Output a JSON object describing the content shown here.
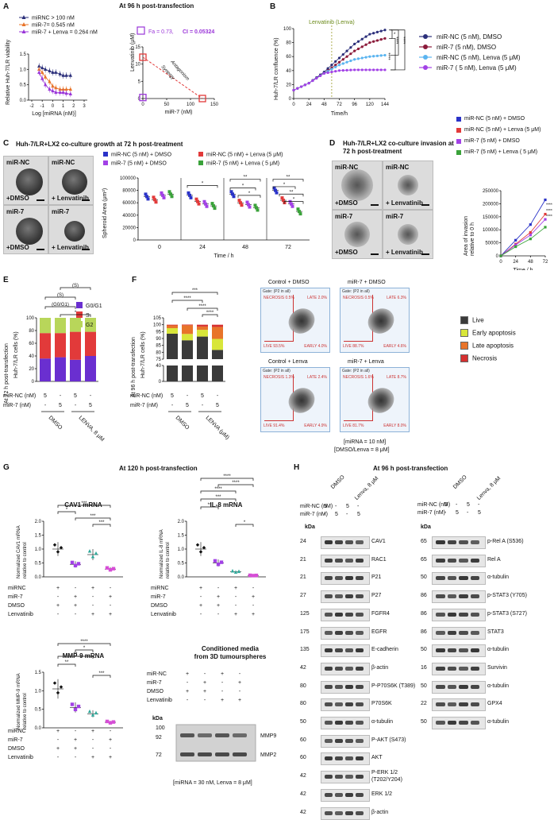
{
  "panelA": {
    "letter": "A",
    "title": "At 96 h post-transfection",
    "legend": [
      "miRNC > 100 nM",
      "miR-7= 0.545 nM",
      "miR-7 + Lenva = 0.264 nM"
    ],
    "ylabel": "Relative Huh-7/LR viability",
    "xlabel": "Log [miRNA (nM)]",
    "xticks": [
      "-2",
      "-1",
      "0",
      "1",
      "2",
      "3"
    ],
    "yticks": [
      "0.0",
      "0.5",
      "1.0",
      "1.5"
    ],
    "fa_label": "Fa = 0.73,",
    "ci_label": "CI = 0.05324",
    "iso_ylabel": "Lenvatinib (μM)",
    "iso_xlabel": "miR-7 (nM)",
    "iso_xticks": [
      "0",
      "50",
      "100",
      "150"
    ],
    "iso_yticks": [
      "0",
      "5",
      "10",
      "15"
    ],
    "antagonism": "Antagonism",
    "synergy": "Synergy"
  },
  "panelB": {
    "letter": "B",
    "annotation": "Lenvatinib (Lenva)",
    "ylabel": "Huh-7/LR confluence (%)",
    "xlabel": "Time/h",
    "xticks": [
      "0",
      "24",
      "48",
      "72",
      "96",
      "120",
      "144"
    ],
    "yticks": [
      "0",
      "20",
      "40",
      "60",
      "80",
      "100"
    ],
    "legend": [
      "miR-NC (5 nM), DMSO",
      "miR-7 (5 nM), DMSO",
      "miR-NC (5 nM), Lenva (5 μM)",
      "miR-7 ( 5 nM), Lenva (5 μM)"
    ],
    "stars": [
      "*",
      "****",
      "****",
      "****"
    ]
  },
  "panelC": {
    "letter": "C",
    "title": "Huh-7/LR+LX2 co-culture growth at 72 h post-treatment",
    "images": [
      {
        "top": "miR-NC",
        "bottom": "+DMSO"
      },
      {
        "top": "miR-NC",
        "bottom": "+ Lenvatinib"
      },
      {
        "top": "miR-7",
        "bottom": "+DMSO"
      },
      {
        "top": "miR-7",
        "bottom": "+ Lenvatinib"
      }
    ],
    "legend": [
      "miR-NC (5 nM) + DMSO",
      "miR-NC (5 nM) + Lenva (5 μM)",
      "miR-7 (5 nM) + DMSO",
      "miR-7 (5 nM) + Lenva ( 5 μM)"
    ],
    "ylabel": "Spheroid Area (μm²)",
    "xlabel": "Time / h",
    "yticks": [
      "0",
      "20000",
      "40000",
      "60000",
      "80000",
      "100000"
    ],
    "xticks": [
      "0",
      "24",
      "48",
      "72"
    ],
    "stars": [
      "*",
      "**",
      "*",
      "*",
      "**",
      "*",
      "**",
      "*"
    ]
  },
  "panelD": {
    "letter": "D",
    "title": "Huh-7/LR+LX2 co-culture invasion at 72 h post-treatment",
    "images": [
      {
        "top": "miR-NC",
        "bottom": "+DMSO"
      },
      {
        "top": "miR-NC",
        "bottom": "+ Lenvatinib"
      },
      {
        "top": "miR-7",
        "bottom": "+DMSO"
      },
      {
        "top": "miR-7",
        "bottom": "+ Lenvatinib"
      }
    ],
    "legend": [
      "miR-NC (5 nM) + DMSO",
      "miR-NC (5 nM) + Lenva (5 μM)",
      "miR-7 (5 nM) + DMSO",
      "miR-7 (5 nM) + Lenva ( 5 μM)"
    ],
    "ylabel": "Area of invasion relative to 0 h",
    "xlabel": "Time / h",
    "yticks": [
      "0",
      "50000",
      "100000",
      "150000",
      "200000",
      "250000"
    ],
    "xticks": [
      "0",
      "24",
      "48",
      "72"
    ],
    "stars": [
      "****",
      "****",
      "****"
    ]
  },
  "panelE": {
    "letter": "E",
    "side": "At 72 h post-transfection",
    "ylabel": "Huh-7/LR cells (%)",
    "legend": [
      "G0/G1",
      "S",
      "G2"
    ],
    "yticks": [
      "0",
      "20",
      "40",
      "60",
      "80",
      "100"
    ],
    "row1": "miR-NC (nM)",
    "row2": "miR-7 (nM)",
    "row1_vals": [
      "5",
      "-",
      "5",
      "-"
    ],
    "row2_vals": [
      "-",
      "5",
      "-",
      "5"
    ],
    "groups": [
      "DMSO",
      "LENVA, 8 μM"
    ],
    "brackets": [
      "(S)",
      "(S)",
      "(G0/G1)",
      "*"
    ]
  },
  "panelF": {
    "letter": "F",
    "side": "At 96 h post-transfection",
    "ylabel": "Huh-7/LR cells (%)",
    "yticks": [
      "0",
      "40",
      "75",
      "80",
      "85",
      "90",
      "95",
      "100",
      "105"
    ],
    "row1": "miR-NC (nM)",
    "row2": "miR-7 (nM)",
    "row1_vals": [
      "5",
      "-",
      "5",
      "-"
    ],
    "row2_vals": [
      "-",
      "5",
      "-",
      "5"
    ],
    "groups": [
      "DMSO",
      "LENVA (μM)"
    ],
    "stars": [
      "***",
      "****",
      "****",
      "****"
    ],
    "flow_titles": [
      "Control + DMSO",
      "miR-7 + DMSO",
      "Control + Lenva",
      "miR-7 + Lenva"
    ],
    "flow_gate": "Gate: (P2 in all)",
    "flow_quads": [
      [
        "NECROSIS 0.5%",
        "LATE 2.0%",
        "LIVE 93.5%",
        "EARLY 4.0%"
      ],
      [
        "NECROSIS 0.5%",
        "LATE 6.3%",
        "LIVE 88.7%",
        "EARLY 4.6%"
      ],
      [
        "NECROSIS 1.3%",
        "LATE 2.4%",
        "LIVE 91.4%",
        "EARLY 4.9%"
      ],
      [
        "NECROSIS 1.6%",
        "LATE 8.7%",
        "LIVE 81.7%",
        "EARLY 8.0%"
      ]
    ],
    "legend": [
      "Live",
      "Early apoptosis",
      "Late apoptosis",
      "Necrosis"
    ],
    "footer1": "[miRNA = 10 nM]",
    "footer2": "[DMSO/Lenva = 8 μM]"
  },
  "panelG": {
    "letter": "G",
    "title": "At 120 h post-transfection",
    "cav1": {
      "title": "CAV1 mRNA",
      "ylabel": "Normalized CAV1 mRNA relative to control",
      "yticks": [
        "0.0",
        "0.5",
        "1.0",
        "1.5",
        "2.0"
      ],
      "stars": [
        "***",
        "*",
        "***",
        "***"
      ]
    },
    "il8": {
      "title": "IL-8 mRNA",
      "ylabel": "Normalized IL-8 mRNA relative to control",
      "yticks": [
        "0.0",
        "0.5",
        "1.0",
        "1.5",
        "2.0"
      ],
      "stars": [
        "****",
        "****",
        "****",
        "***",
        "**",
        "*"
      ]
    },
    "mmp9": {
      "title": "MMP-9 mRNA",
      "ylabel": "Normalized MMP-9 mRNA relative to control",
      "yticks": [
        "0.0",
        "0.5",
        "1.0",
        "1.5"
      ],
      "stars": [
        "****",
        "*",
        "**",
        "**",
        "***"
      ]
    },
    "rows": [
      "miRNC",
      "miR-7",
      "DMSO",
      "Lenvatinib"
    ],
    "row_vals": [
      [
        "+",
        "-",
        "+",
        "-"
      ],
      [
        "-",
        "+",
        "-",
        "+"
      ],
      [
        "+",
        "+",
        "-",
        "-"
      ],
      [
        "-",
        "-",
        "+",
        "+"
      ]
    ],
    "cm_title": "Conditioned media from 3D tumourspheres",
    "cm_rows": [
      "miR-NC",
      "miR-7",
      "DMSO",
      "Lenvatinib"
    ],
    "cm_kda": "kDa",
    "cm_markers": [
      "100",
      "92",
      "72"
    ],
    "cm_bands": [
      "MMP9",
      "MMP2"
    ],
    "footer": "[miRNA = 30 nM, Lenva = 8 μM]"
  },
  "panelH": {
    "letter": "H",
    "title": "At 96 h post-transfection",
    "cols": [
      "DMSO",
      "Lenva, 8 μM"
    ],
    "row1": "miR-NC (nM)",
    "row2": "miR-7 (nM)",
    "row1_vals": [
      "5",
      "-",
      "5",
      "-"
    ],
    "row2_vals": [
      "-",
      "5",
      "-",
      "5"
    ],
    "kda": "kDa",
    "left": [
      {
        "kda": "24",
        "name": "CAV1"
      },
      {
        "kda": "21",
        "name": "RAC1"
      },
      {
        "kda": "21",
        "name": "P21"
      },
      {
        "kda": "27",
        "name": "P27"
      },
      {
        "kda": "125",
        "name": "FGFR4"
      },
      {
        "kda": "175",
        "name": "EGFR"
      },
      {
        "kda": "135",
        "name": "E-cadherin"
      },
      {
        "kda": "42",
        "name": "β-actin"
      },
      {
        "kda": "80",
        "name": "P-P70S6K (T389)"
      },
      {
        "kda": "80",
        "name": "P70S6K"
      },
      {
        "kda": "50",
        "name": "α-tubulin"
      },
      {
        "kda": "60",
        "name": "P-AKT (S473)"
      },
      {
        "kda": "60",
        "name": "AKT"
      },
      {
        "kda": "42",
        "name": "P-ERK 1/2 (T202/Y204)"
      },
      {
        "kda": "42",
        "name": "ERK 1/2"
      },
      {
        "kda": "42",
        "name": "β-actin"
      }
    ],
    "right": [
      {
        "kda": "65",
        "name": "p-Rel A (S536)"
      },
      {
        "kda": "65",
        "name": "Rel A"
      },
      {
        "kda": "50",
        "name": "α-tubulin"
      },
      {
        "kda": "86",
        "name": "p-STAT3 (Y705)"
      },
      {
        "kda": "86",
        "name": "p-STAT3 (S727)"
      },
      {
        "kda": "86",
        "name": "STAT3"
      },
      {
        "kda": "50",
        "name": "α-tubulin"
      },
      {
        "kda": "16",
        "name": "Survivin"
      },
      {
        "kda": "50",
        "name": "α-tubulin"
      },
      {
        "kda": "22",
        "name": "GPX4"
      },
      {
        "kda": "50",
        "name": "α-tubulin"
      }
    ]
  },
  "colors": {
    "navy": "#2b2f7a",
    "orange": "#e8742a",
    "violet": "#9a35d8",
    "blue": "#2a32c8",
    "red": "#e23a3a",
    "purple": "#a241e6",
    "green": "#3aa23a",
    "sky": "#5ab4f0",
    "maroon": "#8b1a3a"
  },
  "chart_data": [
    {
      "type": "line",
      "title": "At 96 h post-transfection",
      "xlabel": "Log [miRNA (nM)]",
      "ylabel": "Relative Huh-7/LR viability",
      "x": [
        -1.3,
        -1,
        -0.7,
        -0.3,
        0,
        0.3,
        0.7,
        1,
        1.3,
        1.7
      ],
      "series": [
        {
          "name": "miRNC > 100 nM",
          "values": [
            1.1,
            1.05,
            1.0,
            0.95,
            0.9,
            0.9,
            0.85,
            0.8,
            0.8,
            0.8
          ]
        },
        {
          "name": "miR-7= 0.545 nM",
          "values": [
            1.0,
            0.9,
            0.75,
            0.6,
            0.45,
            0.4,
            0.35,
            0.35,
            0.35,
            0.35
          ]
        },
        {
          "name": "miR-7 + Lenva = 0.264 nM",
          "values": [
            0.9,
            0.7,
            0.5,
            0.35,
            0.3,
            0.25,
            0.25,
            0.25,
            0.22,
            0.2
          ]
        }
      ],
      "ylim": [
        0,
        1.5
      ]
    },
    {
      "type": "line",
      "xlabel": "Time/h",
      "ylabel": "Huh-7/LR confluence (%)",
      "x": [
        0,
        24,
        48,
        72,
        96,
        120,
        144
      ],
      "series": [
        {
          "name": "miR-NC (5 nM), DMSO",
          "values": [
            12,
            22,
            38,
            58,
            78,
            92,
            98
          ]
        },
        {
          "name": "miR-7 (5 nM), DMSO",
          "values": [
            12,
            22,
            36,
            52,
            68,
            80,
            86
          ]
        },
        {
          "name": "miR-NC (5 nM), Lenva (5 μM)",
          "values": [
            12,
            22,
            36,
            48,
            56,
            60,
            62
          ]
        },
        {
          "name": "miR-7 ( 5 nM), Lenva (5 μM)",
          "values": [
            12,
            22,
            36,
            40,
            41,
            41,
            41
          ]
        }
      ],
      "ylim": [
        0,
        100
      ]
    },
    {
      "type": "bar",
      "xlabel": "Time / h",
      "ylabel": "Spheroid Area (μm²)",
      "categories": [
        "0",
        "24",
        "48",
        "72"
      ],
      "series": [
        {
          "name": "miR-NC (5 nM) + DMSO",
          "values": [
            70000,
            72000,
            74000,
            80000
          ]
        },
        {
          "name": "miR-NC (5 nM) + Lenva (5 μM)",
          "values": [
            65000,
            62000,
            60000,
            64000
          ]
        },
        {
          "name": "miR-7 (5 nM) + DMSO",
          "values": [
            72000,
            58000,
            57000,
            58000
          ]
        },
        {
          "name": "miR-7 (5 nM) + Lenva ( 5 μM)",
          "values": [
            74000,
            55000,
            52000,
            46000
          ]
        }
      ],
      "ylim": [
        0,
        100000
      ]
    },
    {
      "type": "line",
      "xlabel": "Time / h",
      "ylabel": "Area of invasion relative to 0 h",
      "x": [
        0,
        24,
        48,
        72
      ],
      "series": [
        {
          "name": "miR-NC (5 nM) + DMSO",
          "values": [
            0,
            60000,
            120000,
            215000
          ]
        },
        {
          "name": "miR-NC (5 nM) + Lenva (5 μM)",
          "values": [
            0,
            45000,
            90000,
            160000
          ]
        },
        {
          "name": "miR-7 (5 nM) + DMSO",
          "values": [
            0,
            42000,
            80000,
            140000
          ]
        },
        {
          "name": "miR-7 (5 nM) + Lenva ( 5 μM)",
          "values": [
            0,
            35000,
            65000,
            110000
          ]
        }
      ],
      "ylim": [
        0,
        250000
      ]
    },
    {
      "type": "bar",
      "ylabel": "Huh-7/LR cells (%)",
      "categories": [
        "miR-NC DMSO",
        "miR-7 DMSO",
        "miR-NC LENVA",
        "miR-7 LENVA"
      ],
      "series": [
        {
          "name": "G0/G1",
          "values": [
            36,
            38,
            34,
            40
          ]
        },
        {
          "name": "S",
          "values": [
            40,
            38,
            44,
            38
          ]
        },
        {
          "name": "G2",
          "values": [
            24,
            24,
            22,
            22
          ]
        }
      ],
      "ylim": [
        0,
        100
      ]
    },
    {
      "type": "bar",
      "ylabel": "Huh-7/LR cells (%)",
      "categories": [
        "miR-NC DMSO",
        "miR-7 DMSO",
        "miR-NC Lenva",
        "miR-7 Lenva"
      ],
      "series": [
        {
          "name": "Live",
          "values": [
            93.5,
            88.7,
            91.4,
            81.7
          ]
        },
        {
          "name": "Early apoptosis",
          "values": [
            4.0,
            4.6,
            4.9,
            8.0
          ]
        },
        {
          "name": "Late apoptosis",
          "values": [
            2.0,
            6.3,
            2.4,
            8.7
          ]
        },
        {
          "name": "Necrosis",
          "values": [
            0.5,
            0.5,
            1.3,
            1.6
          ]
        }
      ]
    },
    {
      "type": "scatter",
      "title": "CAV1 mRNA",
      "ylabel": "Normalized CAV1 mRNA relative to control",
      "categories": [
        "miRNC+DMSO",
        "miR-7+DMSO",
        "miRNC+Lenva",
        "miR-7+Lenva"
      ],
      "values": [
        1.0,
        0.45,
        0.8,
        0.28
      ],
      "ylim": [
        0,
        2
      ]
    },
    {
      "type": "scatter",
      "title": "IL-8 mRNA",
      "ylabel": "Normalized IL-8 mRNA relative to control",
      "categories": [
        "miRNC+DMSO",
        "miR-7+DMSO",
        "miRNC+Lenva",
        "miR-7+Lenva"
      ],
      "values": [
        1.0,
        0.5,
        0.18,
        0.05
      ],
      "ylim": [
        0,
        2
      ]
    },
    {
      "type": "scatter",
      "title": "MMP-9 mRNA",
      "ylabel": "Normalized MMP-9 mRNA relative to control",
      "categories": [
        "miRNC+DMSO",
        "miR-7+DMSO",
        "miRNC+Lenva",
        "miR-7+Lenva"
      ],
      "values": [
        1.05,
        0.55,
        0.38,
        0.15
      ],
      "ylim": [
        0,
        1.5
      ]
    }
  ]
}
